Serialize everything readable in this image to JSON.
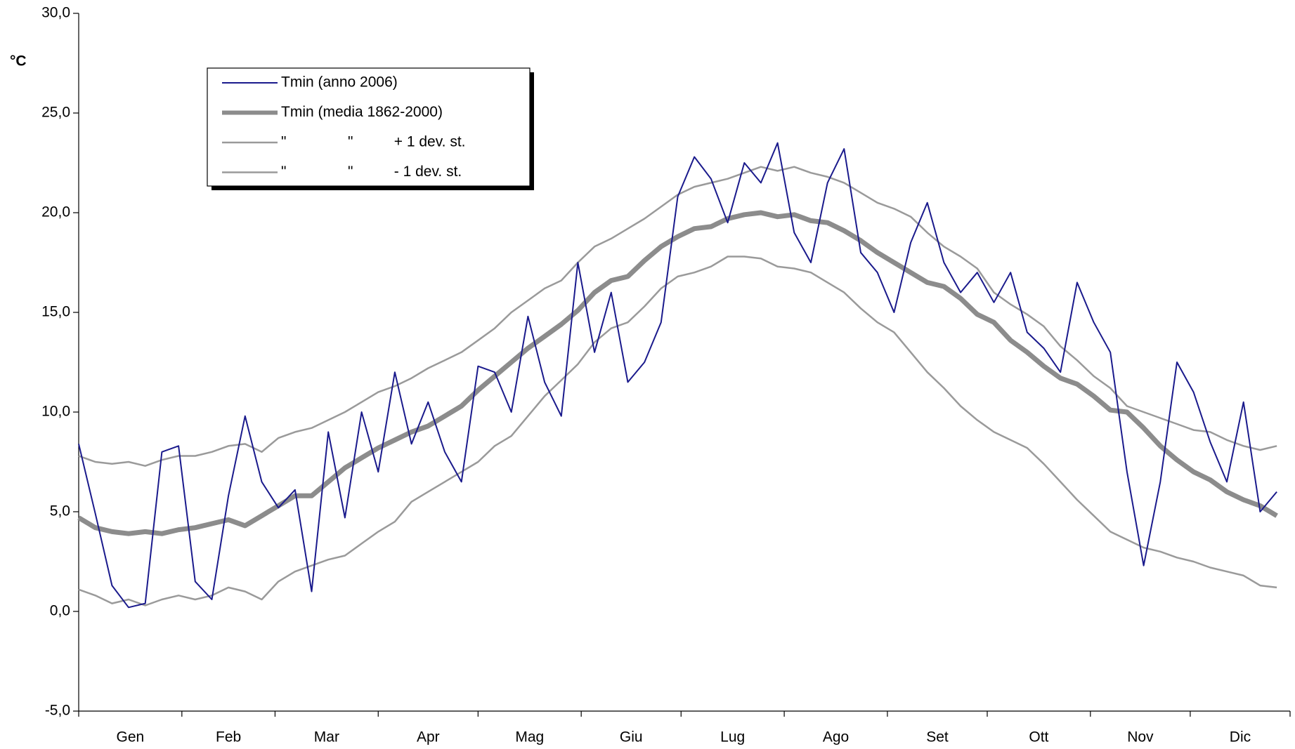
{
  "chart_data": {
    "type": "line",
    "y_label": "°C",
    "x": [
      1,
      6,
      11,
      16,
      21,
      26,
      31,
      36,
      41,
      46,
      51,
      56,
      61,
      66,
      71,
      76,
      81,
      86,
      91,
      96,
      101,
      106,
      111,
      116,
      121,
      126,
      131,
      136,
      141,
      146,
      151,
      156,
      161,
      166,
      171,
      176,
      181,
      186,
      191,
      196,
      201,
      206,
      211,
      216,
      221,
      226,
      231,
      236,
      241,
      246,
      251,
      256,
      261,
      266,
      271,
      276,
      281,
      286,
      291,
      296,
      301,
      306,
      311,
      316,
      321,
      326,
      331,
      336,
      341,
      346,
      351,
      356,
      361
    ],
    "xlim": [
      1,
      365
    ],
    "xticks": [
      1,
      32,
      60,
      91,
      121,
      152,
      182,
      213,
      244,
      274,
      305,
      335,
      365
    ],
    "categories": [
      "Gen",
      "Feb",
      "Mar",
      "Apr",
      "Mag",
      "Giu",
      "Lug",
      "Ago",
      "Set",
      "Ott",
      "Nov",
      "Dic"
    ],
    "ylim": [
      -5,
      30
    ],
    "yticks": [
      {
        "value": -5,
        "label": "-5,0"
      },
      {
        "value": 0,
        "label": "0,0"
      },
      {
        "value": 5,
        "label": "5,0"
      },
      {
        "value": 10,
        "label": "10,0"
      },
      {
        "value": 15,
        "label": "15,0"
      },
      {
        "value": 20,
        "label": "20,0"
      },
      {
        "value": 25,
        "label": "25,0"
      },
      {
        "value": 30,
        "label": "30,0"
      }
    ],
    "series": [
      {
        "name": "Tmin (anno 2006)",
        "color": "#1a1a8c",
        "width": 2,
        "values": [
          8.4,
          4.9,
          1.3,
          0.2,
          0.4,
          8.0,
          8.3,
          1.5,
          0.6,
          5.8,
          9.8,
          6.5,
          5.2,
          6.1,
          1.0,
          9.0,
          4.7,
          10.0,
          7.0,
          12.0,
          8.4,
          10.5,
          8.0,
          6.5,
          12.3,
          12.0,
          10.0,
          14.8,
          11.5,
          9.8,
          17.5,
          13.0,
          16.0,
          11.5,
          12.5,
          14.5,
          20.8,
          22.8,
          21.7,
          19.5,
          22.5,
          21.5,
          23.5,
          19.0,
          17.5,
          21.5,
          23.2,
          18.0,
          17.0,
          15.0,
          18.5,
          20.5,
          17.5,
          16.0,
          17.0,
          15.5,
          17.0,
          14.0,
          13.2,
          12.0,
          16.5,
          14.5,
          13.0,
          7.0,
          2.3,
          6.5,
          12.5,
          11.0,
          8.5,
          6.5,
          10.5,
          5.0,
          6.0
        ]
      },
      {
        "name": "Tmin (media 1862-2000)",
        "color": "#8c8c8c",
        "width": 7,
        "values": [
          4.7,
          4.2,
          4.0,
          3.9,
          4.0,
          3.9,
          4.1,
          4.2,
          4.4,
          4.6,
          4.3,
          4.8,
          5.3,
          5.8,
          5.8,
          6.5,
          7.2,
          7.7,
          8.2,
          8.6,
          9.0,
          9.3,
          9.8,
          10.3,
          11.1,
          11.8,
          12.5,
          13.2,
          13.8,
          14.4,
          15.1,
          16.0,
          16.6,
          16.8,
          17.6,
          18.3,
          18.8,
          19.2,
          19.3,
          19.7,
          19.9,
          20.0,
          19.8,
          19.9,
          19.6,
          19.5,
          19.1,
          18.6,
          18.0,
          17.5,
          17.0,
          16.5,
          16.3,
          15.7,
          14.9,
          14.5,
          13.6,
          13.0,
          12.3,
          11.7,
          11.4,
          10.8,
          10.1,
          10.0,
          9.2,
          8.3,
          7.6,
          7.0,
          6.6,
          6.0,
          5.6,
          5.3,
          4.8
        ]
      },
      {
        "name": "\"               \"          + 1 dev. st.",
        "color": "#9a9a9a",
        "width": 2.5,
        "values": [
          7.8,
          7.5,
          7.4,
          7.5,
          7.3,
          7.6,
          7.8,
          7.8,
          8.0,
          8.3,
          8.4,
          8.0,
          8.7,
          9.0,
          9.2,
          9.6,
          10.0,
          10.5,
          11.0,
          11.3,
          11.7,
          12.2,
          12.6,
          13.0,
          13.6,
          14.2,
          15.0,
          15.6,
          16.2,
          16.6,
          17.5,
          18.3,
          18.7,
          19.2,
          19.7,
          20.3,
          20.9,
          21.3,
          21.5,
          21.7,
          22.0,
          22.3,
          22.1,
          22.3,
          22.0,
          21.8,
          21.5,
          21.0,
          20.5,
          20.2,
          19.8,
          19.0,
          18.3,
          17.8,
          17.2,
          16.0,
          15.4,
          14.9,
          14.3,
          13.3,
          12.6,
          11.8,
          11.2,
          10.3,
          10.0,
          9.7,
          9.4,
          9.1,
          9.0,
          8.6,
          8.3,
          8.1,
          8.3
        ]
      },
      {
        "name": "\"               \"          - 1 dev. st.",
        "color": "#9a9a9a",
        "width": 2.5,
        "values": [
          1.1,
          0.8,
          0.4,
          0.6,
          0.3,
          0.6,
          0.8,
          0.6,
          0.8,
          1.2,
          1.0,
          0.6,
          1.5,
          2.0,
          2.3,
          2.6,
          2.8,
          3.4,
          4.0,
          4.5,
          5.5,
          6.0,
          6.5,
          7.0,
          7.5,
          8.3,
          8.8,
          9.8,
          10.8,
          11.6,
          12.4,
          13.5,
          14.2,
          14.5,
          15.3,
          16.2,
          16.8,
          17.0,
          17.3,
          17.8,
          17.8,
          17.7,
          17.3,
          17.2,
          17.0,
          16.5,
          16.0,
          15.2,
          14.5,
          14.0,
          13.0,
          12.0,
          11.2,
          10.3,
          9.6,
          9.0,
          8.6,
          8.2,
          7.4,
          6.5,
          5.6,
          4.8,
          4.0,
          3.6,
          3.2,
          3.0,
          2.7,
          2.5,
          2.2,
          2.0,
          1.8,
          1.3,
          1.2
        ]
      }
    ]
  }
}
